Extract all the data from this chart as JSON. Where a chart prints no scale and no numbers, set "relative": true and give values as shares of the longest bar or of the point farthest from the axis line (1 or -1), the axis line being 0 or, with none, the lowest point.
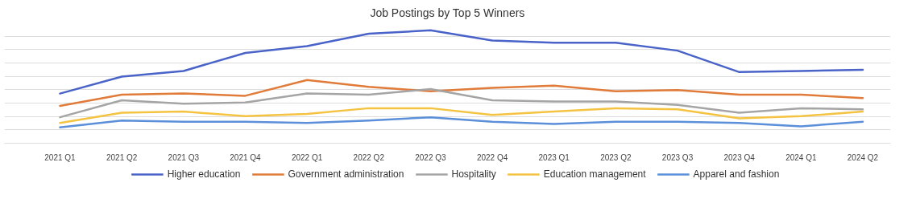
{
  "chart_data": {
    "type": "line",
    "title": "Job Postings by Top 5 Winners",
    "relative": true,
    "grid": "y",
    "legend": "bottom",
    "categories": [
      "2021 Q1",
      "2021 Q2",
      "2021 Q3",
      "2021 Q4",
      "2022 Q1",
      "2022 Q2",
      "2022 Q3",
      "2022 Q4",
      "2023 Q1",
      "2023 Q2",
      "2023 Q3",
      "2023 Q4",
      "2024 Q1",
      "2024 Q2"
    ],
    "series": [
      {
        "name": "Higher education",
        "color": "#4a63c8",
        "values": [
          0.44,
          0.59,
          0.64,
          0.8,
          0.86,
          0.97,
          1.0,
          0.91,
          0.89,
          0.89,
          0.82,
          0.63,
          0.64,
          0.65
        ]
      },
      {
        "name": "Government administration",
        "color": "#e07b39",
        "values": [
          0.33,
          0.43,
          0.44,
          0.42,
          0.56,
          0.5,
          0.46,
          0.49,
          0.51,
          0.46,
          0.47,
          0.43,
          0.43,
          0.4
        ]
      },
      {
        "name": "Hospitality",
        "color": "#a5a5a5",
        "values": [
          0.23,
          0.38,
          0.35,
          0.36,
          0.44,
          0.43,
          0.48,
          0.38,
          0.37,
          0.37,
          0.34,
          0.27,
          0.31,
          0.3
        ]
      },
      {
        "name": "Education management",
        "color": "#f5c342",
        "values": [
          0.18,
          0.27,
          0.28,
          0.24,
          0.26,
          0.31,
          0.31,
          0.25,
          0.28,
          0.31,
          0.3,
          0.22,
          0.24,
          0.28
        ]
      },
      {
        "name": "Apparel and fashion",
        "color": "#5b8fd9",
        "values": [
          0.14,
          0.2,
          0.19,
          0.19,
          0.18,
          0.2,
          0.23,
          0.19,
          0.17,
          0.19,
          0.19,
          0.18,
          0.15,
          0.19
        ]
      }
    ]
  }
}
